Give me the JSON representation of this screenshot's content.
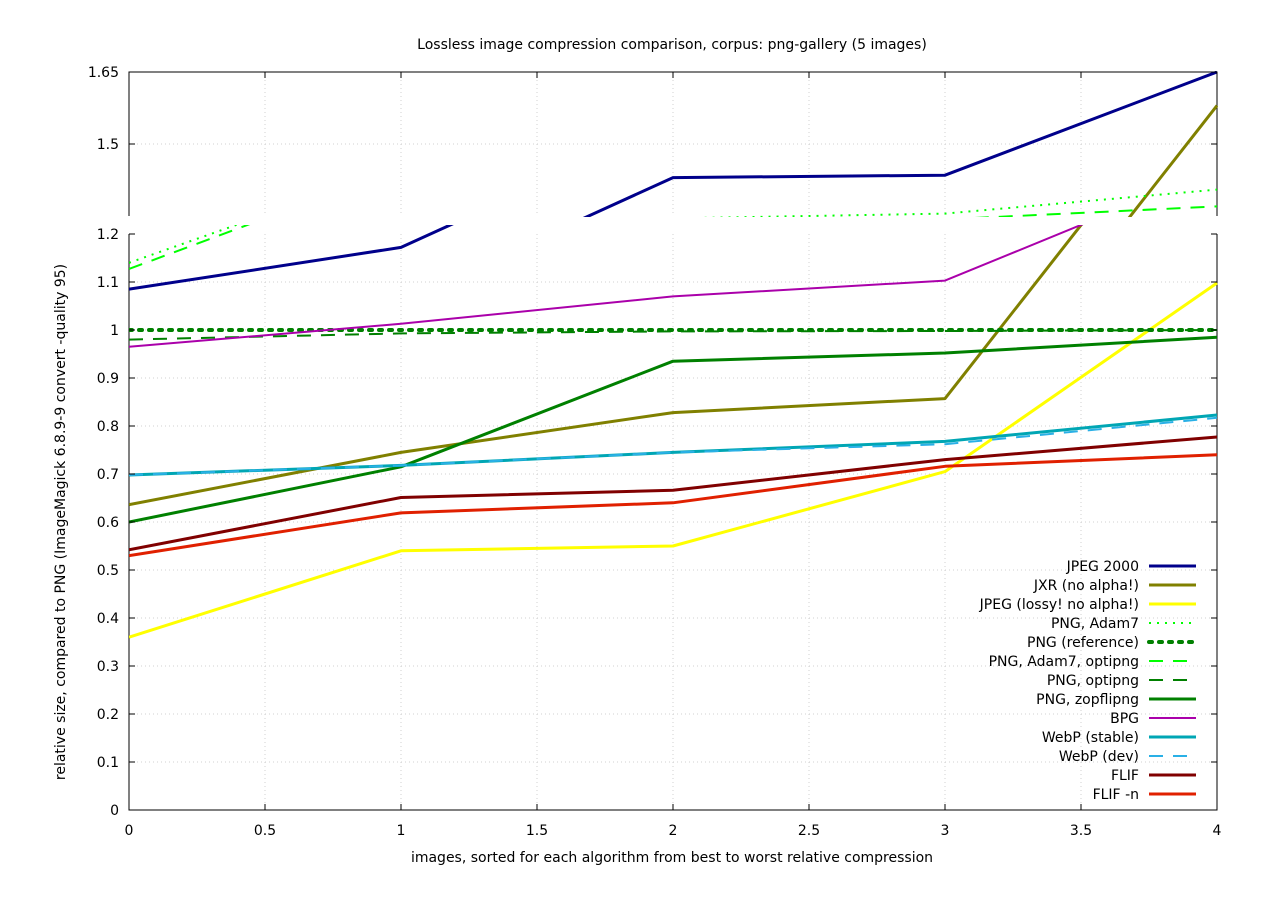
{
  "chart_data": {
    "type": "line",
    "title": "Lossless image compression comparison, corpus: png-gallery (5 images)",
    "xlabel": "images, sorted for each algorithm from best to worst relative compression",
    "ylabel": "relative size, compared to PNG (ImageMagick 6.8.9-9 convert -quality 95)",
    "xlim": [
      0,
      4
    ],
    "ylim": [
      0,
      1.65
    ],
    "y_axis_break": [
      1.2,
      1.35
    ],
    "x_ticks": [
      "0",
      "0.5",
      "1",
      "1.5",
      "2",
      "2.5",
      "3",
      "3.5",
      "4"
    ],
    "y_ticks_lower": [
      "0",
      "0.1",
      "0.2",
      "0.3",
      "0.4",
      "0.5",
      "0.6",
      "0.7",
      "0.8",
      "0.9",
      "1",
      "1.1",
      "1.2"
    ],
    "y_ticks_upper": [
      "1.5",
      "1.65"
    ],
    "grid": true,
    "legend_position": "bottom-right",
    "x": [
      0,
      1,
      2,
      3,
      4
    ],
    "series": [
      {
        "name": "JPEG 2000",
        "color": "#00008b",
        "style": "solid",
        "width": 3,
        "values": [
          1.085,
          1.172,
          1.43,
          1.435,
          1.65
        ]
      },
      {
        "name": "JXR (no alpha!)",
        "color": "#808000",
        "style": "solid",
        "width": 3,
        "values": [
          0.636,
          0.745,
          0.828,
          0.857,
          1.58
        ]
      },
      {
        "name": "JPEG (lossy! no alpha!)",
        "color": "#ffff00",
        "style": "solid",
        "width": 3,
        "values": [
          0.36,
          0.54,
          0.55,
          0.705,
          1.098
        ]
      },
      {
        "name": "PNG, Adam7",
        "color": "#00ff00",
        "style": "dotted",
        "width": 2,
        "values": [
          1.14,
          1.34,
          1.345,
          1.355,
          1.405
        ]
      },
      {
        "name": "PNG (reference)",
        "color": "#008000",
        "style": "dotted-bold",
        "width": 4,
        "values": [
          1.0,
          1.0,
          1.0,
          1.0,
          1.0
        ]
      },
      {
        "name": "PNG, Adam7, optipng",
        "color": "#00ff00",
        "style": "dashed",
        "width": 2,
        "values": [
          1.127,
          1.338,
          1.34,
          1.343,
          1.37
        ]
      },
      {
        "name": "PNG, optipng",
        "color": "#008000",
        "style": "dashed",
        "width": 2,
        "values": [
          0.98,
          0.993,
          0.997,
          0.998,
          1.0
        ]
      },
      {
        "name": "PNG, zopflipng",
        "color": "#008000",
        "style": "solid",
        "width": 3,
        "values": [
          0.6,
          0.715,
          0.935,
          0.952,
          0.985
        ]
      },
      {
        "name": "BPG",
        "color": "#aa00aa",
        "style": "solid",
        "width": 2,
        "values": [
          0.965,
          1.013,
          1.07,
          1.103,
          1.335
        ]
      },
      {
        "name": "WebP (stable)",
        "color": "#00a6b4",
        "style": "solid",
        "width": 3,
        "values": [
          0.698,
          0.718,
          0.745,
          0.768,
          0.823
        ]
      },
      {
        "name": "WebP (dev)",
        "color": "#2ab0e6",
        "style": "dashed",
        "width": 2,
        "values": [
          0.698,
          0.718,
          0.745,
          0.762,
          0.817
        ]
      },
      {
        "name": "FLIF",
        "color": "#800000",
        "style": "solid",
        "width": 3,
        "values": [
          0.542,
          0.651,
          0.666,
          0.73,
          0.777
        ]
      },
      {
        "name": "FLIF -n",
        "color": "#e02000",
        "style": "solid",
        "width": 3,
        "values": [
          0.53,
          0.619,
          0.64,
          0.716,
          0.74
        ]
      }
    ]
  }
}
